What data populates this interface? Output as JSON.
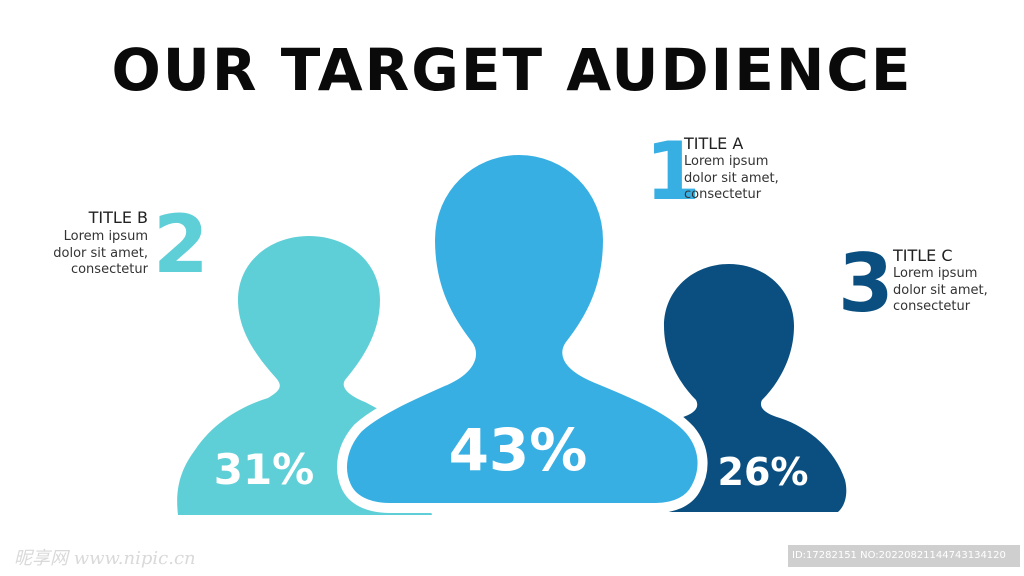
{
  "title": "OUR TARGET AUDIENCE",
  "colors": {
    "a": "#37afe3",
    "b": "#5fcfd7",
    "c": "#0b4f80"
  },
  "figures": [
    {
      "id": "b",
      "percent_label": "31%",
      "color": "#5fcfd7"
    },
    {
      "id": "a",
      "percent_label": "43%",
      "color": "#37afe3"
    },
    {
      "id": "c",
      "percent_label": "26%",
      "color": "#0b4f80"
    }
  ],
  "callouts": {
    "a": {
      "number": "1",
      "heading": "TITLE A",
      "lines": [
        "Lorem ipsum",
        "dolor sit amet,",
        "consectetur"
      ]
    },
    "b": {
      "number": "2",
      "heading": "TITLE B",
      "lines": [
        "Lorem ipsum",
        "dolor sit amet,",
        "consectetur"
      ]
    },
    "c": {
      "number": "3",
      "heading": "TITLE C",
      "lines": [
        "Lorem ipsum",
        "dolor sit amet,",
        "consectetur"
      ]
    }
  },
  "watermark": {
    "left": "昵享网 www.nipic.cn",
    "right": "ID:17282151 NO:20220821144743134120"
  }
}
